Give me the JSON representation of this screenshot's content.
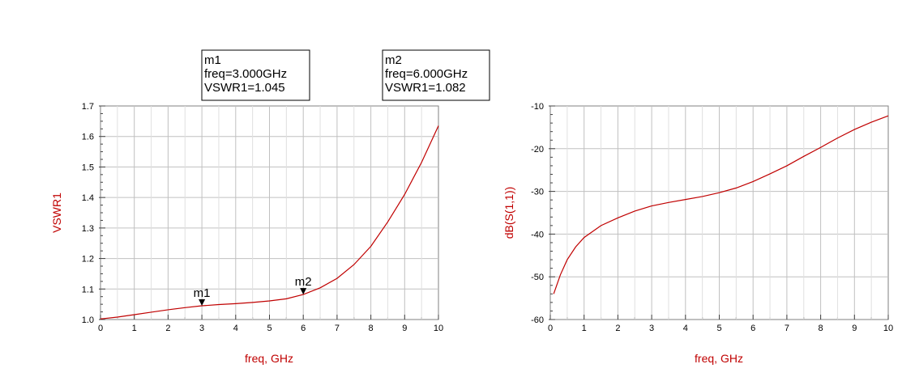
{
  "chart_data": [
    {
      "type": "line",
      "xlabel": "freq, GHz",
      "ylabel": "VSWR1",
      "xlim": [
        0,
        10
      ],
      "ylim": [
        1.0,
        1.7
      ],
      "xticks": [
        "0",
        "1",
        "2",
        "3",
        "4",
        "5",
        "6",
        "7",
        "8",
        "9",
        "10"
      ],
      "yticks": [
        "1.0",
        "1.1",
        "1.2",
        "1.3",
        "1.4",
        "1.5",
        "1.6",
        "1.7"
      ],
      "grid": true,
      "series": [
        {
          "color": "#c00000",
          "x": [
            0,
            0.5,
            1,
            1.5,
            2,
            2.5,
            3,
            3.5,
            4,
            4.5,
            5,
            5.5,
            6,
            6.5,
            7,
            7.5,
            8,
            8.5,
            9,
            9.5,
            10
          ],
          "y": [
            1.002,
            1.008,
            1.016,
            1.024,
            1.032,
            1.039,
            1.045,
            1.049,
            1.052,
            1.056,
            1.061,
            1.068,
            1.082,
            1.104,
            1.135,
            1.18,
            1.24,
            1.32,
            1.41,
            1.515,
            1.635
          ]
        }
      ],
      "markers": [
        {
          "name": "m1",
          "x": 3,
          "y": 1.045,
          "lines": [
            "m1",
            "freq=3.000GHz",
            "VSWR1=1.045"
          ]
        },
        {
          "name": "m2",
          "x": 6,
          "y": 1.082,
          "lines": [
            "m2",
            "freq=6.000GHz",
            "VSWR1=1.082"
          ]
        }
      ]
    },
    {
      "type": "line",
      "xlabel": "freq, GHz",
      "ylabel": "dB(S(1,1))",
      "xlim": [
        0,
        10
      ],
      "ylim": [
        -60,
        -10
      ],
      "xticks": [
        "0",
        "1",
        "2",
        "3",
        "4",
        "5",
        "6",
        "7",
        "8",
        "9",
        "10"
      ],
      "yticks": [
        "-60",
        "-50",
        "-40",
        "-30",
        "-20",
        "-10"
      ],
      "grid": true,
      "series": [
        {
          "color": "#c00000",
          "x": [
            0.1,
            0.3,
            0.5,
            0.75,
            1,
            1.5,
            2,
            2.5,
            3,
            3.5,
            4,
            4.5,
            5,
            5.5,
            6,
            6.5,
            7,
            7.5,
            8,
            8.5,
            9,
            9.5,
            10
          ],
          "y": [
            -54,
            -49.5,
            -46,
            -43,
            -40.8,
            -38,
            -36.2,
            -34.6,
            -33.4,
            -32.6,
            -31.9,
            -31.2,
            -30.3,
            -29.2,
            -27.7,
            -25.9,
            -24,
            -21.8,
            -19.7,
            -17.5,
            -15.5,
            -13.8,
            -12.3
          ]
        }
      ]
    }
  ]
}
